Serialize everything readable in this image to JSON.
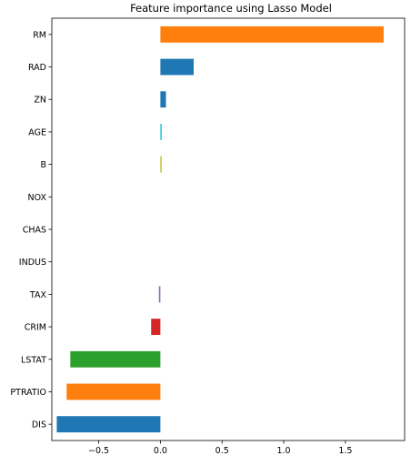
{
  "chart_data": {
    "type": "bar",
    "orientation": "horizontal",
    "title": "Feature importance using Lasso Model",
    "xlabel": "",
    "ylabel": "",
    "xlim": [
      -0.88,
      1.98
    ],
    "xticks": [
      -0.5,
      0.0,
      0.5,
      1.0,
      1.5
    ],
    "xtick_labels": [
      "−0.5",
      "0.0",
      "0.5",
      "1.0",
      "1.5"
    ],
    "grid": false,
    "categories": [
      "RM",
      "RAD",
      "ZN",
      "AGE",
      "B",
      "NOX",
      "CHAS",
      "INDUS",
      "TAX",
      "CRIM",
      "LSTAT",
      "PTRATIO",
      "DIS"
    ],
    "values": [
      1.81,
      0.27,
      0.045,
      0.006,
      0.008,
      0.0,
      0.0,
      0.0,
      -0.012,
      -0.075,
      -0.73,
      -0.76,
      -0.84
    ],
    "colors": [
      "#ff7f0e",
      "#1f77b4",
      "#1f77b4",
      "#17becf",
      "#bcbd22",
      "#7f7f7f",
      "#e377c2",
      "#8c564b",
      "#9467bd",
      "#d62728",
      "#2ca02c",
      "#ff7f0e",
      "#1f77b4"
    ]
  }
}
